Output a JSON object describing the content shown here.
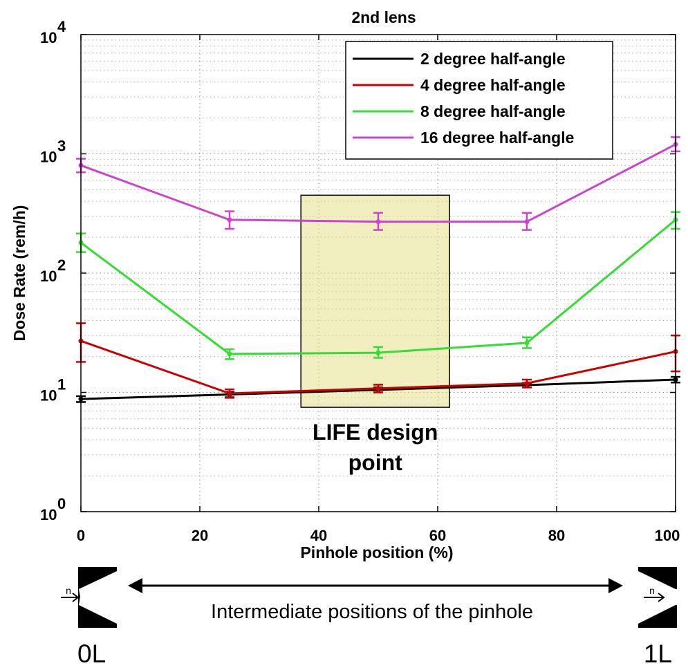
{
  "chart_data": {
    "type": "line",
    "title": "2nd lens",
    "xlabel": "Pinhole position (%)",
    "ylabel": "Dose Rate (rem/h)",
    "xlim": [
      0,
      100
    ],
    "ylim": [
      1,
      10000
    ],
    "yscale": "log",
    "grid": true,
    "legend_position": "top-right",
    "x": [
      0,
      25,
      50,
      75,
      100
    ],
    "x_ticks": [
      "0",
      "20",
      "40",
      "60",
      "80",
      "100"
    ],
    "y_ticks": [
      {
        "base": "10",
        "exp": "0"
      },
      {
        "base": "10",
        "exp": "1"
      },
      {
        "base": "10",
        "exp": "2"
      },
      {
        "base": "10",
        "exp": "3"
      },
      {
        "base": "10",
        "exp": "4"
      }
    ],
    "series": [
      {
        "name": "2 degree half-angle",
        "color": "#000000",
        "values": [
          8.8,
          9.6,
          10.5,
          11.5,
          12.8
        ],
        "err_low": [
          8.3,
          9.1,
          10.0,
          11.0,
          12.1
        ],
        "err_high": [
          9.3,
          10.1,
          11.0,
          12.0,
          13.5
        ]
      },
      {
        "name": "4 degree half-angle",
        "color": "#cc0000",
        "values": [
          27,
          9.8,
          10.8,
          11.9,
          22
        ],
        "err_low": [
          18,
          9.0,
          10.0,
          11.0,
          15
        ],
        "err_high": [
          38,
          10.6,
          11.6,
          12.8,
          30
        ]
      },
      {
        "name": "8 degree half-angle",
        "color": "#33dd33",
        "values": [
          180,
          21,
          21.5,
          26,
          280
        ],
        "err_low": [
          150,
          19,
          19.5,
          23.5,
          235
        ],
        "err_high": [
          215,
          23,
          24,
          29,
          325
        ]
      },
      {
        "name": "16 degree half-angle",
        "color": "#cc44cc",
        "values": [
          800,
          280,
          270,
          270,
          1200
        ],
        "err_low": [
          700,
          235,
          230,
          230,
          1050
        ],
        "err_high": [
          910,
          330,
          320,
          320,
          1380
        ]
      }
    ],
    "annotation": {
      "text_line1": "LIFE design",
      "text_line2": "point",
      "x_range": [
        37,
        62
      ],
      "y_range": [
        7.5,
        450
      ],
      "fill": "#e6e28a"
    }
  },
  "diagram": {
    "caption": "Intermediate positions of the pinhole",
    "left_end_label": "0L",
    "right_end_label": "1L",
    "neutron_label": "n"
  }
}
